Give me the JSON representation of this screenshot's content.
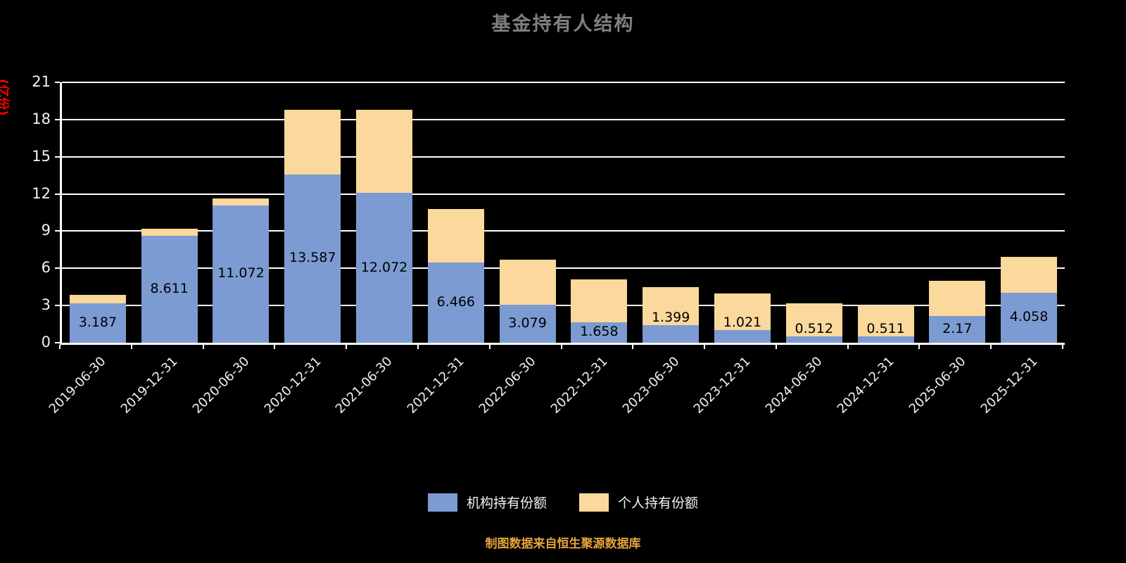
{
  "title": "基金持有人结构",
  "y_axis_unit": "(亿份)",
  "footer": "制图数据来自恒生聚源数据库",
  "legend": {
    "institution_label": "机构持有份额",
    "personal_label": "个人持有份额"
  },
  "colors": {
    "background": "#000000",
    "title_text": "#7f7f7f",
    "axis_text": "#f2f2f2",
    "grid": "#ffffff",
    "unit_label": "#ff0000",
    "footer_text": "#e8a33d",
    "bar_value_text": "#000000",
    "institution": "#7b9bd2",
    "personal": "#fbd89b"
  },
  "chart_data": {
    "type": "bar",
    "stacked": true,
    "title": "基金持有人结构",
    "ylabel": "(亿份)",
    "ylim": [
      0,
      21
    ],
    "y_ticks": [
      0,
      3,
      6,
      9,
      12,
      15,
      18,
      21
    ],
    "grid": true,
    "legend_position": "bottom",
    "categories": [
      "2019-06-30",
      "2019-12-31",
      "2020-06-30",
      "2020-12-31",
      "2021-06-30",
      "2021-12-31",
      "2022-06-30",
      "2022-12-31",
      "2023-06-30",
      "2023-12-31",
      "2024-06-30",
      "2024-12-31",
      "2025-06-30",
      "2025-12-31"
    ],
    "series": [
      {
        "name": "机构持有份额",
        "color_key": "institution",
        "values": [
          3.187,
          8.611,
          11.072,
          13.587,
          12.072,
          6.466,
          3.079,
          1.658,
          1.399,
          1.021,
          0.512,
          0.511,
          2.17,
          4.058
        ],
        "value_labels": [
          "3.187",
          "8.611",
          "11.072",
          "13.587",
          "12.072",
          "6.466",
          "3.079",
          "1.658",
          "1.399",
          "1.021",
          "0.512",
          "0.511",
          "2.17",
          "4.058"
        ],
        "labels_visible": true
      },
      {
        "name": "个人持有份额",
        "color_key": "personal",
        "values": [
          0.7,
          0.6,
          0.55,
          5.2,
          6.73,
          4.33,
          3.6,
          3.44,
          3.1,
          2.98,
          2.69,
          2.49,
          2.83,
          2.84
        ],
        "labels_visible": false
      }
    ]
  }
}
